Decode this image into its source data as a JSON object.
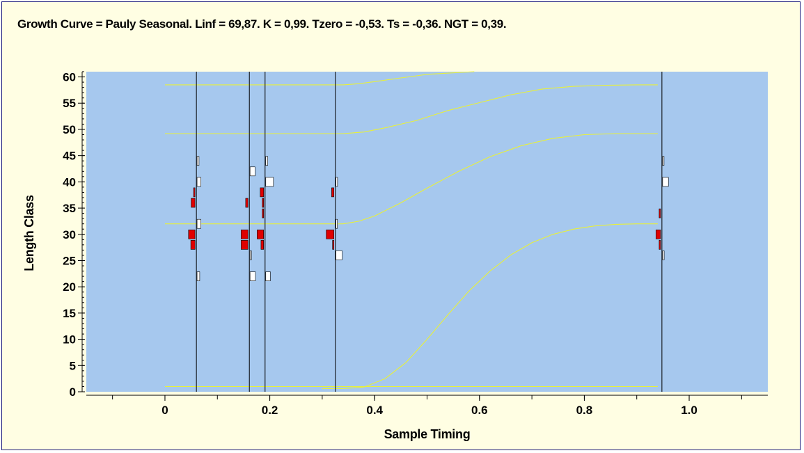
{
  "colors": {
    "frame_background": "#fffee3",
    "plot_background": "#a6c8ee",
    "growth_curve": "#e8f03a",
    "positive_bar": "#ffffff",
    "negative_bar": "#e00000"
  },
  "chart_data": {
    "type": "scatter",
    "title": "Growth Curve = Pauly Seasonal. Linf = 69,87. K = 0,99. Tzero = -0,53. Ts = -0,36. NGT = 0,39.",
    "xlabel": "Sample Timing",
    "ylabel": "Length Class",
    "xlim": [
      -0.15,
      1.15
    ],
    "ylim": [
      0,
      61
    ],
    "x_ticks": [
      0,
      0.2,
      0.4,
      0.6,
      0.8,
      1.0
    ],
    "x_tick_labels": [
      "0",
      "0.2",
      "0.4",
      "0.6",
      "0.8",
      "1.0"
    ],
    "x_minor_step": 0.1,
    "y_ticks": [
      0,
      5,
      10,
      15,
      20,
      25,
      30,
      35,
      40,
      45,
      50,
      55,
      60
    ],
    "y_tick_labels": [
      "0",
      "5",
      "10",
      "15",
      "20",
      "25",
      "30",
      "35",
      "40",
      "45",
      "50",
      "55",
      "60"
    ],
    "y_minor_step": 1,
    "grid": false,
    "legend": "none",
    "class_width": 2,
    "sample_times": [
      0.06,
      0.161,
      0.191,
      0.325,
      0.948
    ],
    "samples": [
      {
        "time": 0.06,
        "bars": [
          {
            "length": 44,
            "value": 0.25
          },
          {
            "length": 40,
            "value": 0.5
          },
          {
            "length": 38,
            "value": -0.12
          },
          {
            "length": 36,
            "value": -0.5
          },
          {
            "length": 32,
            "value": 0.5
          },
          {
            "length": 30,
            "value": -0.85
          },
          {
            "length": 28,
            "value": -0.55
          },
          {
            "length": 22,
            "value": 0.35
          }
        ]
      },
      {
        "time": 0.161,
        "bars": [
          {
            "length": 42,
            "value": 0.65
          },
          {
            "length": 36,
            "value": -0.3
          },
          {
            "length": 30,
            "value": -0.9
          },
          {
            "length": 28,
            "value": -0.9
          },
          {
            "length": 26,
            "value": 0.18
          },
          {
            "length": 22,
            "value": 0.7
          }
        ]
      },
      {
        "time": 0.191,
        "bars": [
          {
            "length": 44,
            "value": 0.25
          },
          {
            "length": 40,
            "value": 1.0
          },
          {
            "length": 38,
            "value": -0.45
          },
          {
            "length": 36,
            "value": -0.12
          },
          {
            "length": 34,
            "value": -0.12
          },
          {
            "length": 30,
            "value": -0.85
          },
          {
            "length": 28,
            "value": -0.35
          },
          {
            "length": 22,
            "value": 0.6
          }
        ]
      },
      {
        "time": 0.325,
        "bars": [
          {
            "length": 40,
            "value": 0.2
          },
          {
            "length": 38,
            "value": -0.3
          },
          {
            "length": 32,
            "value": 0.15
          },
          {
            "length": 30,
            "value": -1.0
          },
          {
            "length": 28,
            "value": -0.12
          },
          {
            "length": 26,
            "value": 0.8
          }
        ]
      },
      {
        "time": 0.948,
        "bars": [
          {
            "length": 44,
            "value": 0.12
          },
          {
            "length": 40,
            "value": 0.75
          },
          {
            "length": 34,
            "value": -0.12
          },
          {
            "length": 30,
            "value": -0.6
          },
          {
            "length": 28,
            "value": -0.18
          },
          {
            "length": 26,
            "value": 0.2
          }
        ]
      }
    ],
    "growth_curves": [
      [
        [
          0.0,
          58.5
        ],
        [
          0.34,
          58.5
        ],
        [
          0.37,
          58.7
        ],
        [
          0.4,
          59.1
        ],
        [
          0.45,
          59.8
        ],
        [
          0.48,
          60.2
        ],
        [
          0.5,
          60.5
        ],
        [
          0.59,
          61.0
        ]
      ],
      [
        [
          0.0,
          49.2
        ],
        [
          0.34,
          49.2
        ],
        [
          0.38,
          49.5
        ],
        [
          0.42,
          50.3
        ],
        [
          0.48,
          51.7
        ],
        [
          0.54,
          53.6
        ],
        [
          0.6,
          55.1
        ],
        [
          0.66,
          56.6
        ],
        [
          0.72,
          57.7
        ],
        [
          0.78,
          58.2
        ],
        [
          0.84,
          58.4
        ],
        [
          0.9,
          58.5
        ],
        [
          0.94,
          58.5
        ]
      ],
      [
        [
          0.0,
          32.0
        ],
        [
          0.34,
          32.0
        ],
        [
          0.37,
          32.5
        ],
        [
          0.4,
          33.5
        ],
        [
          0.45,
          36.0
        ],
        [
          0.5,
          38.8
        ],
        [
          0.56,
          42.0
        ],
        [
          0.62,
          44.8
        ],
        [
          0.68,
          46.9
        ],
        [
          0.74,
          48.3
        ],
        [
          0.8,
          49.0
        ],
        [
          0.86,
          49.2
        ],
        [
          0.94,
          49.2
        ]
      ],
      [
        [
          0.3,
          0.6
        ],
        [
          0.34,
          0.6
        ],
        [
          0.38,
          0.9
        ],
        [
          0.42,
          2.5
        ],
        [
          0.46,
          5.6
        ],
        [
          0.5,
          10.0
        ],
        [
          0.54,
          14.7
        ],
        [
          0.58,
          19.2
        ],
        [
          0.62,
          23.0
        ],
        [
          0.66,
          26.1
        ],
        [
          0.7,
          28.4
        ],
        [
          0.74,
          30.0
        ],
        [
          0.78,
          31.0
        ],
        [
          0.82,
          31.6
        ],
        [
          0.86,
          31.9
        ],
        [
          0.9,
          32.0
        ],
        [
          0.94,
          32.0
        ]
      ],
      [
        [
          0.0,
          1.0
        ],
        [
          0.94,
          1.0
        ]
      ]
    ]
  }
}
